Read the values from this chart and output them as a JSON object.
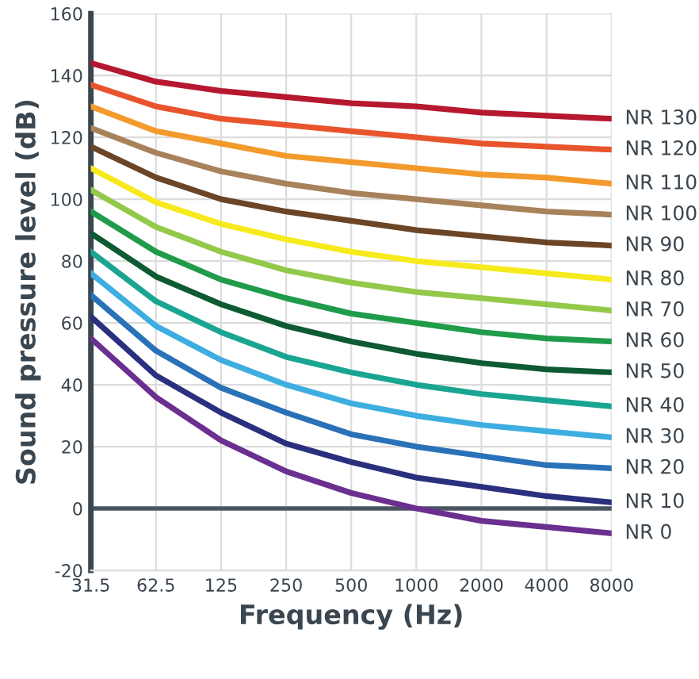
{
  "chart_data": {
    "type": "line",
    "xlabel": "Frequency (Hz)",
    "ylabel": "Sound pressure level (dB)",
    "categories": [
      "31.5",
      "62.5",
      "125",
      "250",
      "500",
      "1000",
      "2000",
      "4000",
      "8000"
    ],
    "ylim": [
      -20,
      160
    ],
    "yticks": [
      -20,
      0,
      20,
      40,
      60,
      80,
      100,
      120,
      140,
      160
    ],
    "grid": true,
    "legend": false,
    "marker": "none",
    "line_style": "solid",
    "ref_lines": [
      {
        "axis": "y",
        "value": 0,
        "color": "#4a5560"
      }
    ],
    "series": [
      {
        "name": "NR 130",
        "color": "#b5182f",
        "values": [
          144,
          138,
          135,
          133,
          131,
          130,
          128,
          127,
          126
        ]
      },
      {
        "name": "NR 120",
        "color": "#e8542c",
        "values": [
          137,
          130,
          126,
          124,
          122,
          120,
          118,
          117,
          116
        ]
      },
      {
        "name": "NR 110",
        "color": "#f39a2c",
        "values": [
          130,
          122,
          118,
          114,
          112,
          110,
          108,
          107,
          105
        ]
      },
      {
        "name": "NR 100",
        "color": "#a8825a",
        "values": [
          123,
          115,
          109,
          105,
          102,
          100,
          98,
          96,
          95
        ]
      },
      {
        "name": "NR 90",
        "color": "#6b4526",
        "values": [
          117,
          107,
          100,
          96,
          93,
          90,
          88,
          86,
          85
        ]
      },
      {
        "name": "NR 80",
        "color": "#f7ea1c",
        "values": [
          110,
          99,
          92,
          87,
          83,
          80,
          78,
          76,
          74
        ]
      },
      {
        "name": "NR 70",
        "color": "#93c94a",
        "values": [
          103,
          91,
          83,
          77,
          73,
          70,
          68,
          66,
          64
        ]
      },
      {
        "name": "NR 60",
        "color": "#1f9b4a",
        "values": [
          96,
          83,
          74,
          68,
          63,
          60,
          57,
          55,
          54
        ]
      },
      {
        "name": "NR 50",
        "color": "#0d5a33",
        "values": [
          89,
          75,
          66,
          59,
          54,
          50,
          47,
          45,
          44
        ]
      },
      {
        "name": "NR 40",
        "color": "#1aa592",
        "values": [
          83,
          67,
          57,
          49,
          44,
          40,
          37,
          35,
          33
        ]
      },
      {
        "name": "NR 30",
        "color": "#3eaee0",
        "values": [
          76,
          59,
          48,
          40,
          34,
          30,
          27,
          25,
          23
        ]
      },
      {
        "name": "NR 20",
        "color": "#2a72b8",
        "values": [
          69,
          51,
          39,
          31,
          24,
          20,
          17,
          14,
          13
        ]
      },
      {
        "name": "NR 10",
        "color": "#2a2f7e",
        "values": [
          62,
          43,
          31,
          21,
          15,
          10,
          7,
          4,
          2
        ]
      },
      {
        "name": "NR 0",
        "color": "#6b2f90",
        "values": [
          55,
          36,
          22,
          12,
          5,
          0,
          -4,
          -6,
          -8
        ]
      }
    ]
  }
}
